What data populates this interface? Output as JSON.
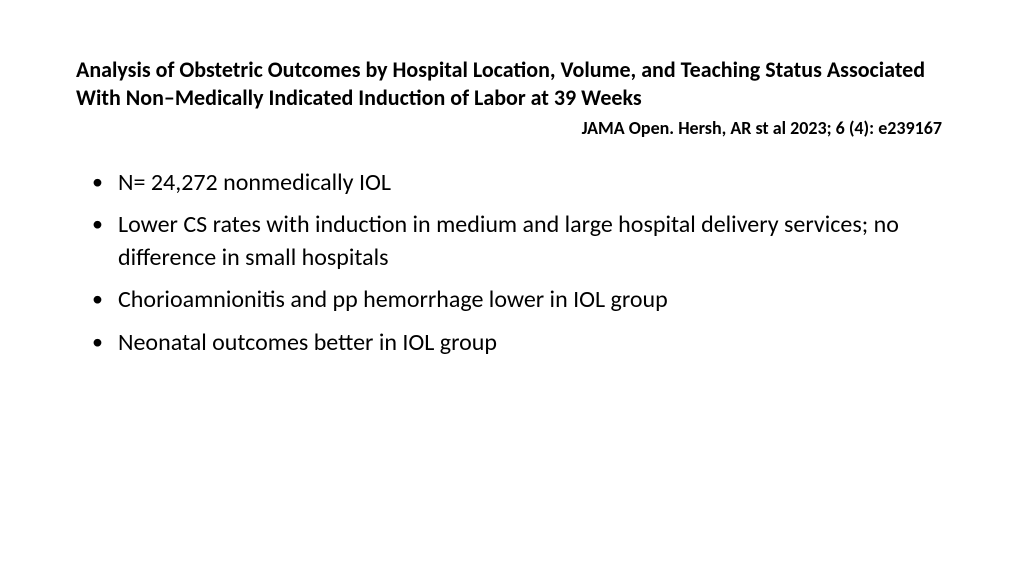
{
  "slide": {
    "title": "Analysis of Obstetric Outcomes by Hospital Location, Volume, and Teaching Status Associated With Non–Medically Indicated Induction of Labor at 39 Weeks",
    "citation": "JAMA Open. Hersh, AR st al 2023; 6 (4): e239167",
    "bullets": [
      "N= 24,272 nonmedically IOL",
      "Lower CS rates with induction in medium and large hospital delivery services; no difference in small hospitals",
      "Chorioamnionitis and pp hemorrhage lower in IOL group",
      "Neonatal outcomes better in IOL group"
    ],
    "styling": {
      "background_color": "#ffffff",
      "text_color": "#000000",
      "font_family": "Calibri",
      "title_fontsize": 22,
      "title_fontweight": 600,
      "citation_fontsize": 18,
      "citation_fontweight": 600,
      "bullet_fontsize": 24,
      "bullet_marker": "•"
    }
  }
}
